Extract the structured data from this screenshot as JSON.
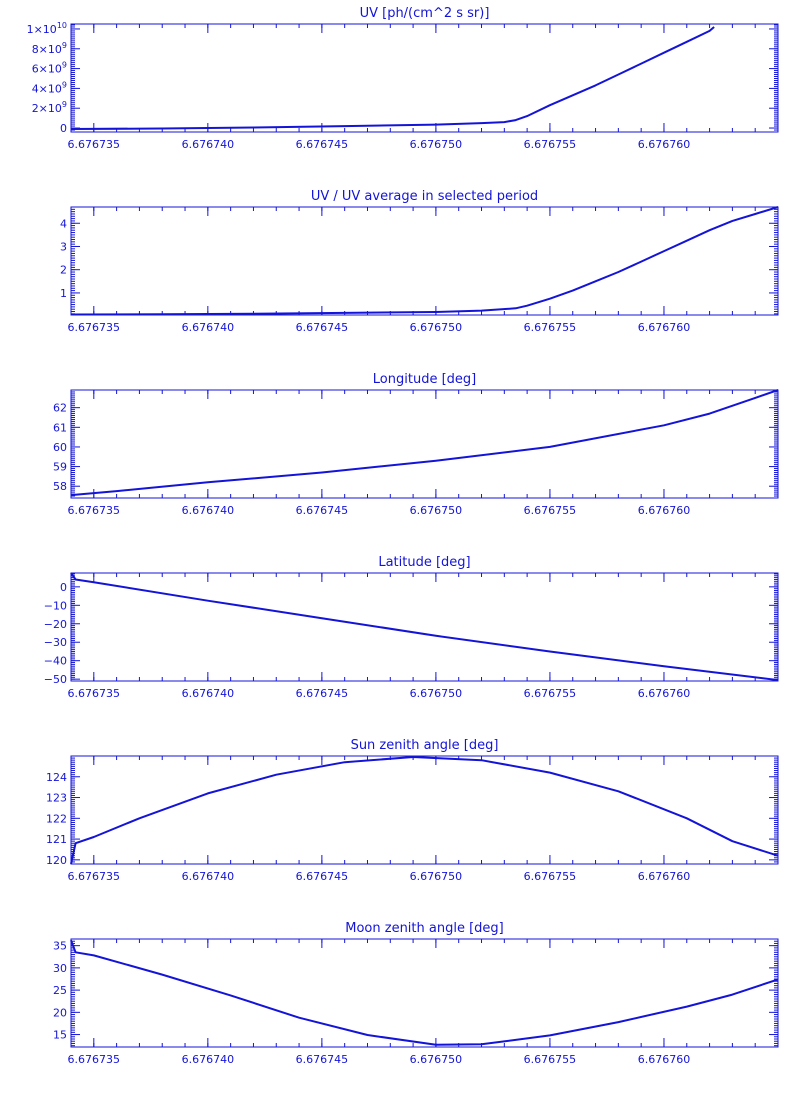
{
  "chart_data": [
    {
      "type": "line",
      "title": "UV [ph/(cm^2 s sr)]",
      "xlim": [
        6.676734,
        6.676765
      ],
      "ylim": [
        -400000000.0,
        10500000000.0
      ],
      "x_ticks": [
        6.676735,
        6.67674,
        6.676745,
        6.67675,
        6.676755,
        6.67676
      ],
      "x_tick_labels": [
        "6.676735",
        "6.676740",
        "6.676745",
        "6.676750",
        "6.676755",
        "6.676760"
      ],
      "y_ticks": [
        0,
        2000000000.0,
        4000000000.0,
        6000000000.0,
        8000000000.0,
        10000000000.0
      ],
      "y_tick_labels": [
        {
          "base": "0",
          "exp": ""
        },
        {
          "base": "2×10",
          "exp": "9"
        },
        {
          "base": "4×10",
          "exp": "9"
        },
        {
          "base": "6×10",
          "exp": "9"
        },
        {
          "base": "8×10",
          "exp": "9"
        },
        {
          "base": "1×10",
          "exp": "10"
        }
      ],
      "series": [
        {
          "x": [
            6.676734,
            6.676738,
            6.676742,
            6.676746,
            6.67675,
            6.676752,
            6.676753,
            6.6767535,
            6.676754,
            6.676755,
            6.676756,
            6.676757,
            6.676758,
            6.676759,
            6.67676,
            6.676761,
            6.676762,
            6.6767622
          ],
          "y": [
            -100000000.0,
            -50000000.0,
            50000000.0,
            200000000.0,
            350000000.0,
            500000000.0,
            600000000.0,
            800000000.0,
            1200000000.0,
            2300000000.0,
            3300000000.0,
            4300000000.0,
            5400000000.0,
            6500000000.0,
            7600000000.0,
            8700000000.0,
            9800000000.0,
            10200000000.0
          ]
        }
      ]
    },
    {
      "type": "line",
      "title": "UV / UV average in selected period",
      "xlim": [
        6.676734,
        6.676765
      ],
      "ylim": [
        0.05,
        4.7
      ],
      "x_ticks": [
        6.676735,
        6.67674,
        6.676745,
        6.67675,
        6.676755,
        6.67676
      ],
      "x_tick_labels": [
        "6.676735",
        "6.676740",
        "6.676745",
        "6.676750",
        "6.676755",
        "6.676760"
      ],
      "y_ticks": [
        1,
        2,
        3,
        4
      ],
      "y_tick_labels": [
        {
          "base": "1",
          "exp": ""
        },
        {
          "base": "2",
          "exp": ""
        },
        {
          "base": "3",
          "exp": ""
        },
        {
          "base": "4",
          "exp": ""
        }
      ],
      "series": [
        {
          "x": [
            6.676734,
            6.676738,
            6.676742,
            6.676746,
            6.67675,
            6.676752,
            6.6767535,
            6.676754,
            6.676755,
            6.676756,
            6.676757,
            6.676758,
            6.676759,
            6.67676,
            6.676761,
            6.676762,
            6.676763,
            6.676764,
            6.676765
          ],
          "y": [
            0.07,
            0.08,
            0.1,
            0.14,
            0.18,
            0.24,
            0.34,
            0.45,
            0.75,
            1.1,
            1.5,
            1.9,
            2.35,
            2.8,
            3.25,
            3.7,
            4.1,
            4.4,
            4.7
          ]
        }
      ]
    },
    {
      "type": "line",
      "title": "Longitude [deg]",
      "xlim": [
        6.676734,
        6.676765
      ],
      "ylim": [
        57.4,
        62.9
      ],
      "x_ticks": [
        6.676735,
        6.67674,
        6.676745,
        6.67675,
        6.676755,
        6.67676
      ],
      "x_tick_labels": [
        "6.676735",
        "6.676740",
        "6.676745",
        "6.676750",
        "6.676755",
        "6.676760"
      ],
      "y_ticks": [
        58,
        59,
        60,
        61,
        62
      ],
      "y_tick_labels": [
        {
          "base": "58",
          "exp": ""
        },
        {
          "base": "59",
          "exp": ""
        },
        {
          "base": "60",
          "exp": ""
        },
        {
          "base": "61",
          "exp": ""
        },
        {
          "base": "62",
          "exp": ""
        }
      ],
      "series": [
        {
          "x": [
            6.676734,
            6.676736,
            6.67674,
            6.676745,
            6.67675,
            6.676755,
            6.67676,
            6.676762,
            6.676764,
            6.676765
          ],
          "y": [
            57.55,
            57.75,
            58.2,
            58.7,
            59.3,
            60.0,
            61.1,
            61.7,
            62.5,
            62.9
          ]
        }
      ]
    },
    {
      "type": "line",
      "title": "Latitude [deg]",
      "xlim": [
        6.676734,
        6.676765
      ],
      "ylim": [
        -51,
        7.5
      ],
      "x_ticks": [
        6.676735,
        6.67674,
        6.676745,
        6.67675,
        6.676755,
        6.67676
      ],
      "x_tick_labels": [
        "6.676735",
        "6.676740",
        "6.676745",
        "6.676750",
        "6.676755",
        "6.676760"
      ],
      "y_ticks": [
        0,
        -10,
        -20,
        -30,
        -40,
        -50
      ],
      "y_tick_labels": [
        {
          "base": "0",
          "exp": ""
        },
        {
          "base": "−10",
          "exp": ""
        },
        {
          "base": "−20",
          "exp": ""
        },
        {
          "base": "−30",
          "exp": ""
        },
        {
          "base": "−40",
          "exp": ""
        },
        {
          "base": "−50",
          "exp": ""
        }
      ],
      "series": [
        {
          "x": [
            6.676734,
            6.6767342,
            6.676735,
            6.67674,
            6.676745,
            6.67675,
            6.676755,
            6.67676,
            6.676765
          ],
          "y": [
            7.5,
            4.0,
            2.5,
            -7.5,
            -17.0,
            -26.5,
            -35.0,
            -43.0,
            -50.5
          ]
        }
      ]
    },
    {
      "type": "line",
      "title": "Sun zenith angle [deg]",
      "xlim": [
        6.676734,
        6.676765
      ],
      "ylim": [
        119.8,
        125.0
      ],
      "x_ticks": [
        6.676735,
        6.67674,
        6.676745,
        6.67675,
        6.676755,
        6.67676
      ],
      "x_tick_labels": [
        "6.676735",
        "6.676740",
        "6.676745",
        "6.676750",
        "6.676755",
        "6.676760"
      ],
      "y_ticks": [
        120,
        121,
        122,
        123,
        124
      ],
      "y_tick_labels": [
        {
          "base": "120",
          "exp": ""
        },
        {
          "base": "121",
          "exp": ""
        },
        {
          "base": "122",
          "exp": ""
        },
        {
          "base": "123",
          "exp": ""
        },
        {
          "base": "124",
          "exp": ""
        }
      ],
      "series": [
        {
          "x": [
            6.676734,
            6.6767342,
            6.676735,
            6.676737,
            6.67674,
            6.676743,
            6.676746,
            6.676749,
            6.676752,
            6.676755,
            6.676758,
            6.676761,
            6.676763,
            6.676765
          ],
          "y": [
            119.8,
            120.8,
            121.1,
            122.0,
            123.2,
            124.1,
            124.7,
            124.95,
            124.8,
            124.2,
            123.3,
            122.0,
            120.9,
            120.2
          ]
        }
      ]
    },
    {
      "type": "line",
      "title": "Moon zenith angle [deg]",
      "xlim": [
        6.676734,
        6.676765
      ],
      "ylim": [
        12.2,
        36.5
      ],
      "x_ticks": [
        6.676735,
        6.67674,
        6.676745,
        6.67675,
        6.676755,
        6.67676
      ],
      "x_tick_labels": [
        "6.676735",
        "6.676740",
        "6.676745",
        "6.676750",
        "6.676755",
        "6.676760"
      ],
      "y_ticks": [
        15,
        20,
        25,
        30,
        35
      ],
      "y_tick_labels": [
        {
          "base": "15",
          "exp": ""
        },
        {
          "base": "20",
          "exp": ""
        },
        {
          "base": "25",
          "exp": ""
        },
        {
          "base": "30",
          "exp": ""
        },
        {
          "base": "35",
          "exp": ""
        }
      ],
      "series": [
        {
          "x": [
            6.676734,
            6.6767342,
            6.676735,
            6.676738,
            6.676741,
            6.676744,
            6.676747,
            6.67675,
            6.676752,
            6.676755,
            6.676758,
            6.676761,
            6.676763,
            6.676765
          ],
          "y": [
            36.2,
            33.5,
            32.8,
            28.5,
            23.8,
            18.8,
            14.9,
            12.7,
            12.8,
            14.8,
            17.8,
            21.3,
            24.0,
            27.4
          ]
        }
      ]
    }
  ]
}
